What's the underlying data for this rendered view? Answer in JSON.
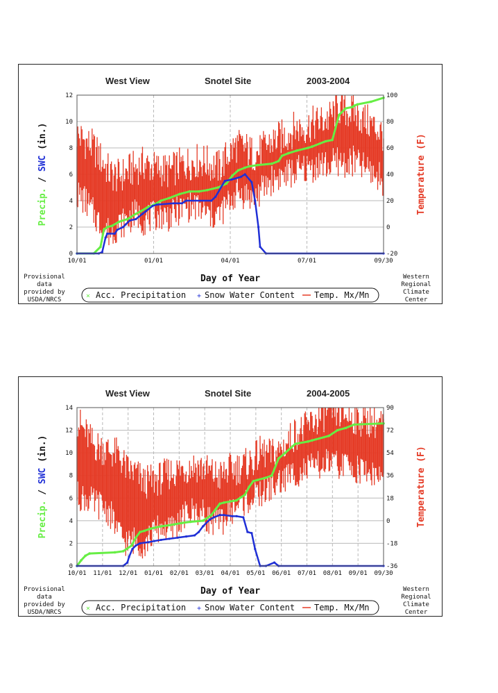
{
  "charts": [
    {
      "title_left": "West View",
      "title_center": "Snotel Site",
      "title_right": "2003-2004",
      "x_ticks": [
        "10/01",
        "01/01",
        "04/01",
        "07/01",
        "09/30"
      ],
      "y_left_ticks": [
        "0",
        "2",
        "4",
        "6",
        "8",
        "10",
        "12"
      ],
      "y_right_ticks": [
        "-20",
        "0",
        "20",
        "40",
        "60",
        "80",
        "100"
      ],
      "xlabel": "Day of Year",
      "legend": {
        "precip": "Acc. Precipitation",
        "swc": "Snow Water Content",
        "temp": "Temp. Mx/Mn"
      },
      "credit_left": [
        "Provisional",
        "data",
        "provided by",
        "USDA/NRCS"
      ],
      "credit_right": [
        "Western",
        "Regional",
        "Climate",
        "Center"
      ]
    },
    {
      "title_left": "West View",
      "title_center": "Snotel Site",
      "title_right": "2004-2005",
      "x_ticks": [
        "10/01",
        "11/01",
        "12/01",
        "01/01",
        "02/01",
        "03/01",
        "04/01",
        "05/01",
        "06/01",
        "07/01",
        "08/01",
        "09/01",
        "09/30"
      ],
      "y_left_ticks": [
        "0",
        "2",
        "4",
        "6",
        "8",
        "10",
        "12",
        "14"
      ],
      "y_right_ticks": [
        "-36",
        "-18",
        "0",
        "18",
        "36",
        "54",
        "72",
        "90"
      ],
      "xlabel": "Day of Year",
      "legend": {
        "precip": "Acc. Precipitation",
        "swc": "Snow Water Content",
        "temp": "Temp. Mx/Mn"
      },
      "credit_left": [
        "Provisional",
        "data",
        "provided by",
        "USDA/NRCS"
      ],
      "credit_right": [
        "Western",
        "Regional",
        "Climate",
        "Center"
      ]
    }
  ],
  "axis_labels": {
    "ylabel_precip": "Precip.",
    "ylabel_sep": " / ",
    "ylabel_swc": "SWC",
    "ylabel_unit": " (in.)",
    "ylabel_right": "Temperature (F)"
  },
  "colors": {
    "precip": "#66ee44",
    "swc": "#1f2fd6",
    "temp": "#e53a25",
    "grid": "#b8b8b8"
  },
  "chart_data": [
    {
      "type": "line",
      "title": "West View Snotel Site 2003-2004",
      "xlabel": "Day of Year",
      "ylabel": "Precip. / SWC (in.)",
      "ylabel_right": "Temperature (F)",
      "xlim": [
        0,
        365
      ],
      "ylim": [
        0,
        12
      ],
      "ylim_right": [
        -20,
        100
      ],
      "series": [
        {
          "name": "Acc. Precipitation",
          "axis": "left",
          "x": [
            0,
            20,
            28,
            32,
            36,
            42,
            50,
            60,
            70,
            76,
            84,
            92,
            100,
            110,
            122,
            134,
            145,
            155,
            168,
            178,
            185,
            192,
            200,
            205,
            215,
            232,
            240,
            244,
            252,
            262,
            275,
            280,
            296,
            304,
            312,
            320,
            328,
            330,
            334,
            350,
            365
          ],
          "y": [
            0,
            0,
            0.5,
            1.8,
            2.0,
            2.1,
            2.4,
            2.6,
            3.0,
            3.2,
            3.5,
            3.7,
            4.0,
            4.2,
            4.5,
            4.7,
            4.7,
            4.8,
            5.0,
            5.3,
            5.9,
            6.3,
            6.5,
            6.6,
            6.7,
            6.8,
            7.0,
            7.4,
            7.6,
            7.8,
            8.0,
            8.1,
            8.5,
            8.6,
            10.5,
            11.0,
            11.1,
            11.2,
            11.3,
            11.5,
            11.8
          ]
        },
        {
          "name": "Snow Water Content",
          "axis": "left",
          "x": [
            0,
            26,
            30,
            34,
            36,
            45,
            48,
            55,
            58,
            63,
            70,
            78,
            82,
            90,
            95,
            115,
            125,
            130,
            160,
            165,
            176,
            184,
            195,
            200,
            208,
            212,
            216,
            218,
            225,
            365
          ],
          "y": [
            0,
            0,
            0.1,
            1.2,
            1.5,
            1.5,
            1.8,
            2.0,
            2.2,
            2.5,
            2.6,
            3.0,
            3.2,
            3.6,
            3.7,
            3.8,
            3.8,
            4.0,
            4.0,
            4.3,
            5.5,
            5.6,
            5.8,
            6.0,
            5.4,
            4.0,
            2.0,
            0.5,
            0,
            0
          ]
        },
        {
          "name": "Temp. Mx/Mn",
          "axis": "right",
          "x": [
            0,
            10,
            20,
            30,
            40,
            50,
            60,
            70,
            80,
            90,
            100,
            110,
            120,
            130,
            140,
            150,
            160,
            170,
            180,
            190,
            200,
            210,
            220,
            230,
            240,
            250,
            260,
            270,
            280,
            290,
            300,
            310,
            320,
            330,
            340,
            350,
            365
          ],
          "max": [
            70,
            65,
            60,
            50,
            40,
            38,
            42,
            45,
            48,
            45,
            44,
            42,
            46,
            48,
            50,
            50,
            47,
            45,
            55,
            62,
            60,
            55,
            58,
            64,
            67,
            70,
            75,
            75,
            78,
            80,
            82,
            90,
            88,
            87,
            82,
            78,
            70
          ],
          "min": [
            25,
            20,
            10,
            0,
            -5,
            2,
            5,
            10,
            5,
            8,
            10,
            8,
            12,
            15,
            16,
            12,
            8,
            10,
            18,
            26,
            25,
            22,
            28,
            35,
            38,
            40,
            42,
            44,
            45,
            48,
            46,
            50,
            48,
            50,
            46,
            42,
            35
          ]
        }
      ]
    },
    {
      "type": "line",
      "title": "West View Snotel Site 2004-2005",
      "xlabel": "Day of Year",
      "ylabel": "Precip. / SWC (in.)",
      "ylabel_right": "Temperature (F)",
      "xlim": [
        0,
        365
      ],
      "ylim": [
        0,
        14
      ],
      "ylim_right": [
        -36,
        90
      ],
      "series": [
        {
          "name": "Acc. Precipitation",
          "axis": "left",
          "x": [
            0,
            5,
            10,
            15,
            45,
            55,
            65,
            70,
            75,
            80,
            88,
            100,
            110,
            125,
            135,
            150,
            160,
            165,
            170,
            175,
            190,
            200,
            205,
            210,
            215,
            225,
            232,
            240,
            248,
            260,
            275,
            280,
            300,
            310,
            320,
            330,
            365
          ],
          "y": [
            0,
            0.5,
            0.9,
            1.1,
            1.2,
            1.3,
            1.8,
            2.5,
            3.0,
            3.1,
            3.3,
            3.5,
            3.6,
            3.8,
            3.9,
            4.0,
            4.5,
            5.0,
            5.5,
            5.6,
            5.8,
            6.3,
            7.0,
            7.5,
            7.6,
            7.8,
            8.0,
            9.5,
            10.0,
            10.8,
            11.0,
            11.1,
            11.5,
            12.0,
            12.2,
            12.5,
            12.6
          ]
        },
        {
          "name": "Snow Water Content",
          "axis": "left",
          "x": [
            0,
            55,
            60,
            62,
            66,
            70,
            75,
            85,
            92,
            100,
            110,
            120,
            130,
            140,
            145,
            150,
            158,
            163,
            170,
            175,
            185,
            190,
            198,
            203,
            208,
            212,
            218,
            225,
            235,
            240,
            365
          ],
          "y": [
            0,
            0,
            0.3,
            0.8,
            1.5,
            1.8,
            2.0,
            2.1,
            2.2,
            2.3,
            2.4,
            2.5,
            2.6,
            2.7,
            3.0,
            3.5,
            4.1,
            4.3,
            4.5,
            4.5,
            4.4,
            4.4,
            4.3,
            3.0,
            2.9,
            1.5,
            0,
            0,
            0.3,
            0,
            0
          ]
        },
        {
          "name": "Temp. Mx/Mn",
          "axis": "right",
          "x": [
            0,
            10,
            20,
            30,
            40,
            50,
            60,
            70,
            80,
            90,
            100,
            110,
            120,
            130,
            140,
            150,
            160,
            170,
            180,
            190,
            200,
            210,
            220,
            230,
            240,
            250,
            260,
            270,
            280,
            290,
            300,
            310,
            320,
            330,
            340,
            350,
            365
          ],
          "max": [
            80,
            70,
            60,
            58,
            55,
            52,
            40,
            38,
            30,
            32,
            34,
            38,
            40,
            42,
            44,
            42,
            38,
            35,
            40,
            42,
            44,
            48,
            55,
            52,
            55,
            62,
            70,
            72,
            78,
            82,
            88,
            86,
            84,
            82,
            80,
            80,
            76
          ],
          "min": [
            20,
            18,
            14,
            12,
            5,
            -10,
            -18,
            -15,
            -20,
            -10,
            -5,
            -8,
            -2,
            5,
            8,
            5,
            0,
            -2,
            5,
            12,
            15,
            18,
            22,
            26,
            30,
            35,
            38,
            40,
            42,
            44,
            46,
            44,
            44,
            42,
            40,
            38,
            34
          ]
        }
      ]
    }
  ]
}
